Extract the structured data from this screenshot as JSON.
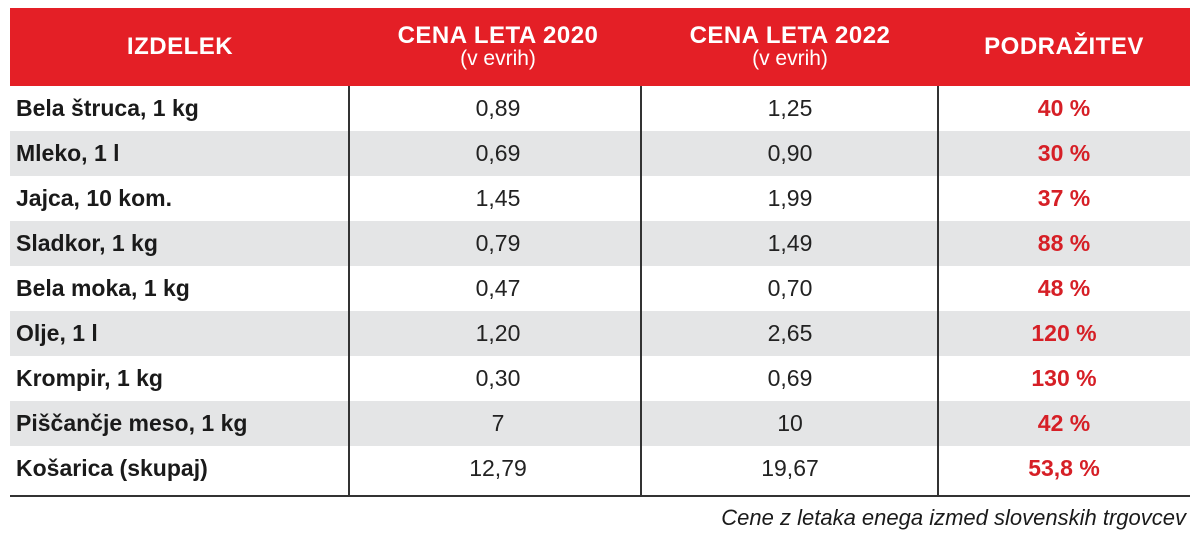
{
  "table": {
    "headers": [
      {
        "line1": "IZDELEK",
        "line2": ""
      },
      {
        "line1": "CENA LETA 2020",
        "line2": "(v evrih)"
      },
      {
        "line1": "CENA LETA 2022",
        "line2": "(v evrih)"
      },
      {
        "line1": "PODRAŽITEV",
        "line2": ""
      }
    ],
    "rows": [
      {
        "item": "Bela štruca, 1 kg",
        "p2020": "0,89",
        "p2022": "1,25",
        "increase": "40 %"
      },
      {
        "item": "Mleko, 1 l",
        "p2020": "0,69",
        "p2022": "0,90",
        "increase": "30 %"
      },
      {
        "item": "Jajca, 10 kom.",
        "p2020": "1,45",
        "p2022": "1,99",
        "increase": "37 %"
      },
      {
        "item": "Sladkor, 1 kg",
        "p2020": "0,79",
        "p2022": "1,49",
        "increase": "88 %"
      },
      {
        "item": "Bela moka, 1 kg",
        "p2020": "0,47",
        "p2022": "0,70",
        "increase": "48 %"
      },
      {
        "item": "Olje, 1 l",
        "p2020": "1,20",
        "p2022": "2,65",
        "increase": "120 %"
      },
      {
        "item": "Krompir, 1 kg",
        "p2020": "0,30",
        "p2022": "0,69",
        "increase": "130 %"
      },
      {
        "item": "Piščančje meso, 1 kg",
        "p2020": "7",
        "p2022": "10",
        "increase": "42 %"
      },
      {
        "item": "Košarica (skupaj)",
        "p2020": "12,79",
        "p2022": "19,67",
        "increase": "53,8 %"
      }
    ]
  },
  "caption": "Cene z letaka enega izmed slovenskih trgovcev",
  "colors": {
    "header_bg": "#e41f26",
    "increase_text": "#d61f26",
    "alt_row_bg": "#e4e5e6"
  }
}
